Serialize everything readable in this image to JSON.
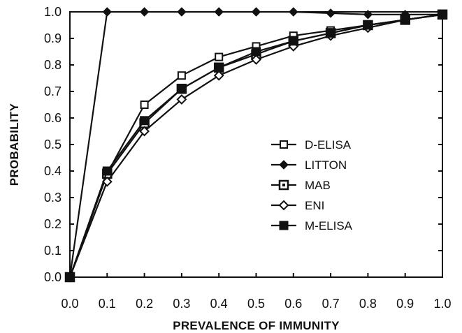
{
  "chart_data": {
    "type": "line",
    "title": "",
    "xlabel": "PREVALENCE OF IMMUNITY",
    "ylabel": "PROBABILITY",
    "xlim": [
      0.0,
      1.0
    ],
    "ylim": [
      0.0,
      1.0
    ],
    "x_ticks": [
      "0.0",
      "0.1",
      "0.2",
      "0.3",
      "0.4",
      "0.5",
      "0.6",
      "0.7",
      "0.8",
      "0.9",
      "1.0"
    ],
    "y_ticks": [
      "0.0",
      "0.1",
      "0.2",
      "0.3",
      "0.4",
      "0.5",
      "0.6",
      "0.7",
      "0.8",
      "0.9",
      "1.0"
    ],
    "grid": false,
    "legend_position": "center-right",
    "x": [
      0.0,
      0.1,
      0.2,
      0.3,
      0.4,
      0.5,
      0.6,
      0.7,
      0.8,
      0.9,
      1.0
    ],
    "series": [
      {
        "name": "D-ELISA",
        "marker": "open-square",
        "values": [
          0.0,
          0.39,
          0.65,
          0.76,
          0.83,
          0.87,
          0.91,
          0.93,
          0.95,
          0.97,
          0.99
        ]
      },
      {
        "name": "LITTON",
        "marker": "filled-diamond",
        "values": [
          0.0,
          1.0,
          1.0,
          1.0,
          1.0,
          1.0,
          1.0,
          0.995,
          0.99,
          0.99,
          0.99
        ]
      },
      {
        "name": "MAB",
        "marker": "boxed-square",
        "values": [
          0.0,
          0.39,
          0.58,
          0.71,
          0.79,
          0.84,
          0.89,
          0.92,
          0.95,
          0.97,
          0.99
        ]
      },
      {
        "name": "ENI",
        "marker": "open-diamond",
        "values": [
          0.0,
          0.36,
          0.55,
          0.67,
          0.76,
          0.82,
          0.87,
          0.91,
          0.94,
          0.97,
          0.99
        ]
      },
      {
        "name": "M-ELISA",
        "marker": "filled-square",
        "values": [
          0.0,
          0.4,
          0.59,
          0.71,
          0.79,
          0.85,
          0.89,
          0.92,
          0.95,
          0.97,
          0.99
        ]
      }
    ]
  }
}
